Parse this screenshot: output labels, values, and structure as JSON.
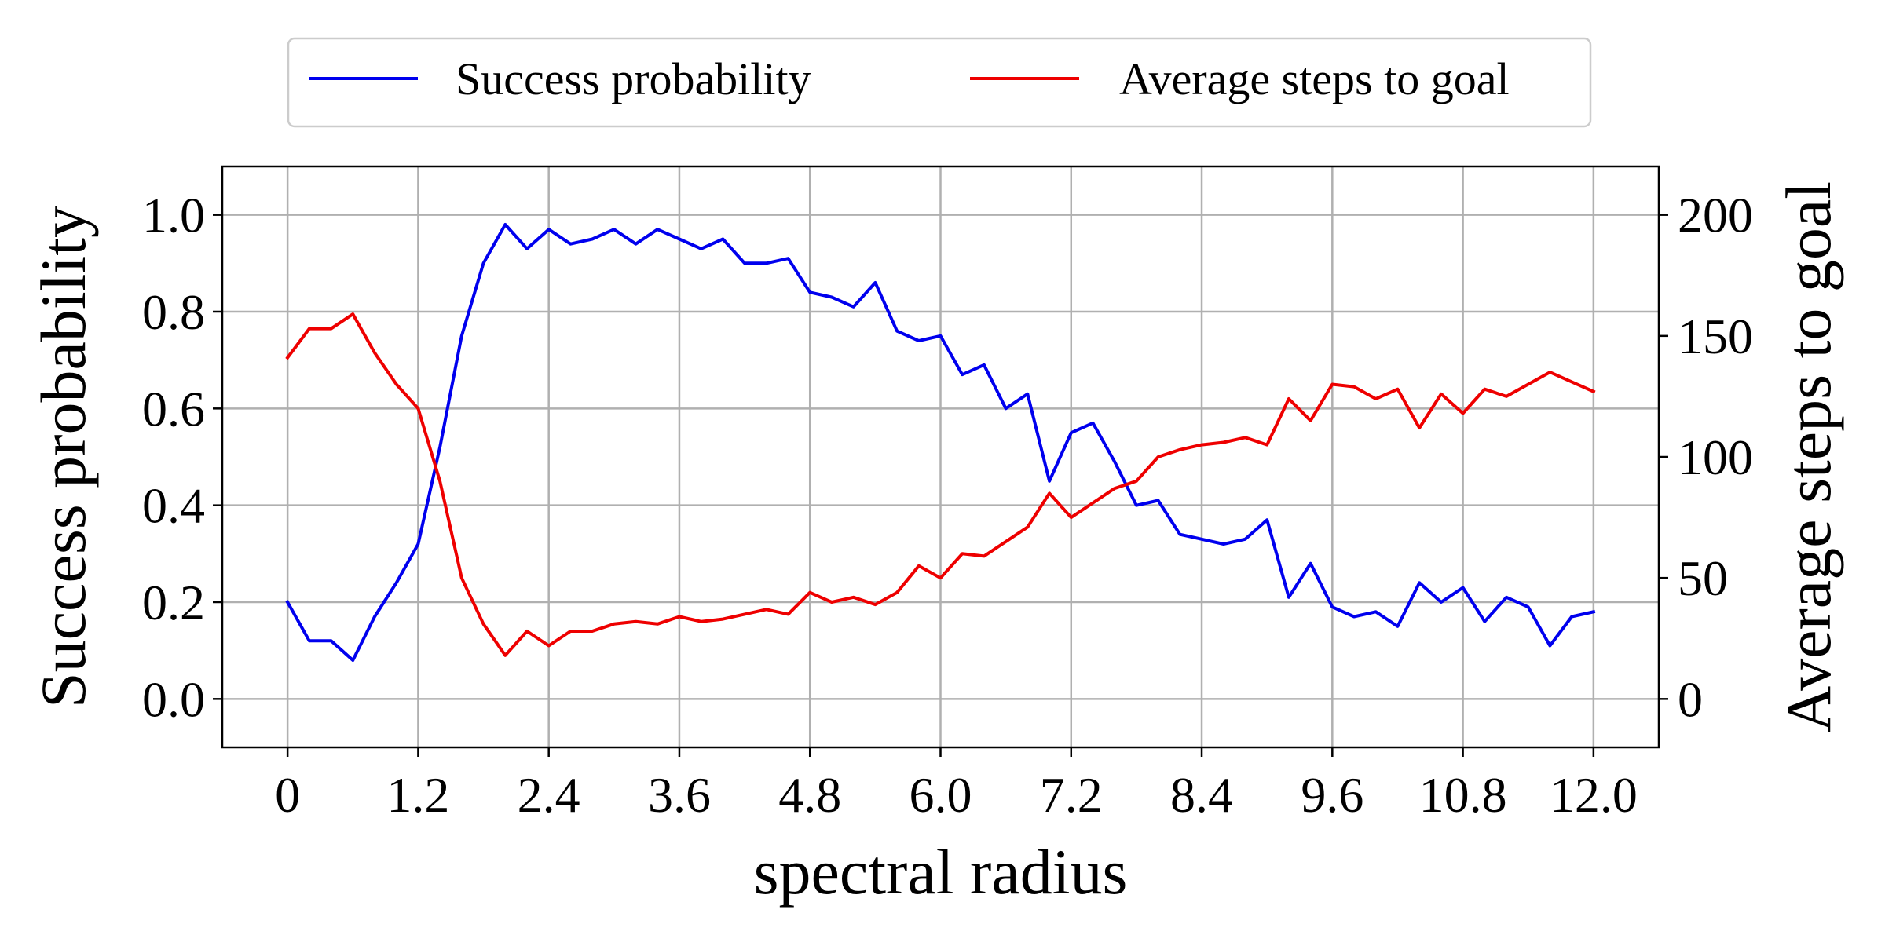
{
  "chart_data": {
    "type": "line",
    "title": "",
    "xlabel": "spectral radius",
    "ylabel_left": "Success probability",
    "ylabel_right": "Average steps to goal",
    "xlim": [
      -0.6,
      12.6
    ],
    "ylim_left": [
      -0.1,
      1.1
    ],
    "ylim_right": [
      -20,
      220
    ],
    "xticks": [
      0,
      1.2,
      2.4,
      3.6,
      4.8,
      6.0,
      7.2,
      8.4,
      9.6,
      10.8,
      12.0
    ],
    "xtick_labels": [
      "0",
      "1.2",
      "2.4",
      "3.6",
      "4.8",
      "6.0",
      "7.2",
      "8.4",
      "9.6",
      "10.8",
      "12.0"
    ],
    "yticks_left": [
      0,
      0.2,
      0.4,
      0.6,
      0.8,
      1.0
    ],
    "ytick_labels_left": [
      "0.0",
      "0.2",
      "0.4",
      "0.6",
      "0.8",
      "1.0"
    ],
    "yticks_right": [
      0,
      50,
      100,
      150,
      200
    ],
    "ytick_labels_right": [
      "0",
      "50",
      "100",
      "150",
      "200"
    ],
    "grid": true,
    "legend_position": "top-center, above plot",
    "x": [
      0,
      0.2,
      0.4,
      0.6,
      0.8,
      1.0,
      1.2,
      1.4,
      1.6,
      1.8,
      2.0,
      2.2,
      2.4,
      2.6,
      2.8,
      3.0,
      3.2,
      3.4,
      3.6,
      3.8,
      4.0,
      4.2,
      4.4,
      4.6,
      4.8,
      5.0,
      5.2,
      5.4,
      5.6,
      5.8,
      6.0,
      6.2,
      6.4,
      6.6,
      6.8,
      7.0,
      7.2,
      7.4,
      7.6,
      7.8,
      8.0,
      8.2,
      8.4,
      8.6,
      8.8,
      9.0,
      9.2,
      9.4,
      9.6,
      9.8,
      10.0,
      10.2,
      10.4,
      10.6,
      10.8,
      11.0,
      11.2,
      11.4,
      11.6,
      11.8,
      12.0
    ],
    "series": [
      {
        "name": "Success probability",
        "axis": "left",
        "color": "#0000ee",
        "values": [
          0.2,
          0.12,
          0.12,
          0.08,
          0.17,
          0.24,
          0.32,
          0.52,
          0.75,
          0.9,
          0.98,
          0.93,
          0.97,
          0.94,
          0.95,
          0.97,
          0.94,
          0.97,
          0.95,
          0.93,
          0.95,
          0.9,
          0.9,
          0.91,
          0.84,
          0.83,
          0.81,
          0.86,
          0.76,
          0.74,
          0.75,
          0.67,
          0.69,
          0.6,
          0.63,
          0.45,
          0.55,
          0.57,
          0.49,
          0.4,
          0.41,
          0.34,
          0.33,
          0.32,
          0.33,
          0.37,
          0.21,
          0.28,
          0.19,
          0.17,
          0.18,
          0.15,
          0.24,
          0.2,
          0.23,
          0.16,
          0.21,
          0.19,
          0.11,
          0.17,
          0.18
        ]
      },
      {
        "name": "Average steps to goal",
        "axis": "right",
        "color": "#ee0000",
        "values": [
          141,
          153,
          153,
          159,
          143,
          130,
          120,
          90,
          50,
          31,
          18,
          28,
          22,
          28,
          28,
          31,
          32,
          31,
          34,
          32,
          33,
          35,
          37,
          35,
          44,
          40,
          42,
          39,
          44,
          55,
          50,
          60,
          59,
          65,
          71,
          85,
          75,
          81,
          87,
          90,
          100,
          103,
          105,
          106,
          108,
          105,
          124,
          115,
          130,
          129,
          124,
          128,
          112,
          126,
          118,
          128,
          125,
          130,
          135,
          131,
          127
        ]
      }
    ]
  }
}
